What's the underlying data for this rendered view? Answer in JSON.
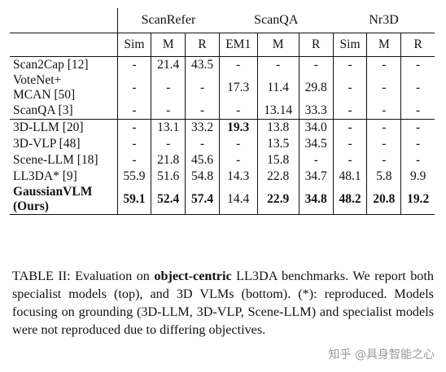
{
  "table": {
    "groups": [
      "ScanRefer",
      "ScanQA",
      "Nr3D"
    ],
    "metrics": [
      "Sim",
      "M",
      "R",
      "EM1",
      "M",
      "R",
      "Sim",
      "M",
      "R"
    ],
    "specialist_rows": [
      {
        "model": "Scan2Cap [12]",
        "cells": [
          "-",
          "21.4",
          "43.5",
          "-",
          "-",
          "-",
          "-",
          "-",
          "-"
        ]
      },
      {
        "model_lines": [
          "VoteNet+",
          "MCAN [50]"
        ],
        "cells": [
          "-",
          "-",
          "-",
          "17.3",
          "11.4",
          "29.8",
          "-",
          "-",
          "-"
        ]
      },
      {
        "model": "ScanQA [3]",
        "cells": [
          "-",
          "-",
          "-",
          "-",
          "13.14",
          "33.3",
          "-",
          "-",
          "-"
        ]
      }
    ],
    "vlm_rows": [
      {
        "model": "3D-LLM [20]",
        "cells": [
          "-",
          "13.1",
          "33.2",
          "19.3",
          "13.8",
          "34.0",
          "-",
          "-",
          "-"
        ],
        "bold": [
          3
        ]
      },
      {
        "model": "3D-VLP [48]",
        "cells": [
          "-",
          "-",
          "-",
          "-",
          "13.5",
          "34.5",
          "-",
          "-",
          "-"
        ],
        "bold": []
      },
      {
        "model": "Scene-LLM [18]",
        "cells": [
          "-",
          "21.8",
          "45.6",
          "-",
          "15.8",
          "-",
          "-",
          "-",
          "-"
        ],
        "bold": []
      },
      {
        "model": "LL3DA* [9]",
        "cells": [
          "55.9",
          "51.6",
          "54.8",
          "14.3",
          "22.8",
          "34.7",
          "48.1",
          "5.8",
          "9.9"
        ],
        "bold": []
      }
    ],
    "ours_row": {
      "model_lines": [
        "GaussianVLM",
        "(Ours)"
      ],
      "cells": [
        "59.1",
        "52.4",
        "57.4",
        "14.4",
        "22.9",
        "34.8",
        "48.2",
        "20.8",
        "19.2"
      ],
      "bold": [
        0,
        1,
        2,
        4,
        5,
        6,
        7,
        8
      ]
    }
  },
  "caption": {
    "prefix": "TABLE II: Evaluation on ",
    "keyword": "object-centric",
    "rest": " LL3DA benchmarks. We report both specialist models (top), and 3D VLMs (bottom). (*): reproduced. Models focusing on grounding (3D-LLM, 3D-VLP, Scene-LLM) and specialist models were not reproduced due to differing objectives."
  },
  "watermark": "知乎 @具身智能之心"
}
